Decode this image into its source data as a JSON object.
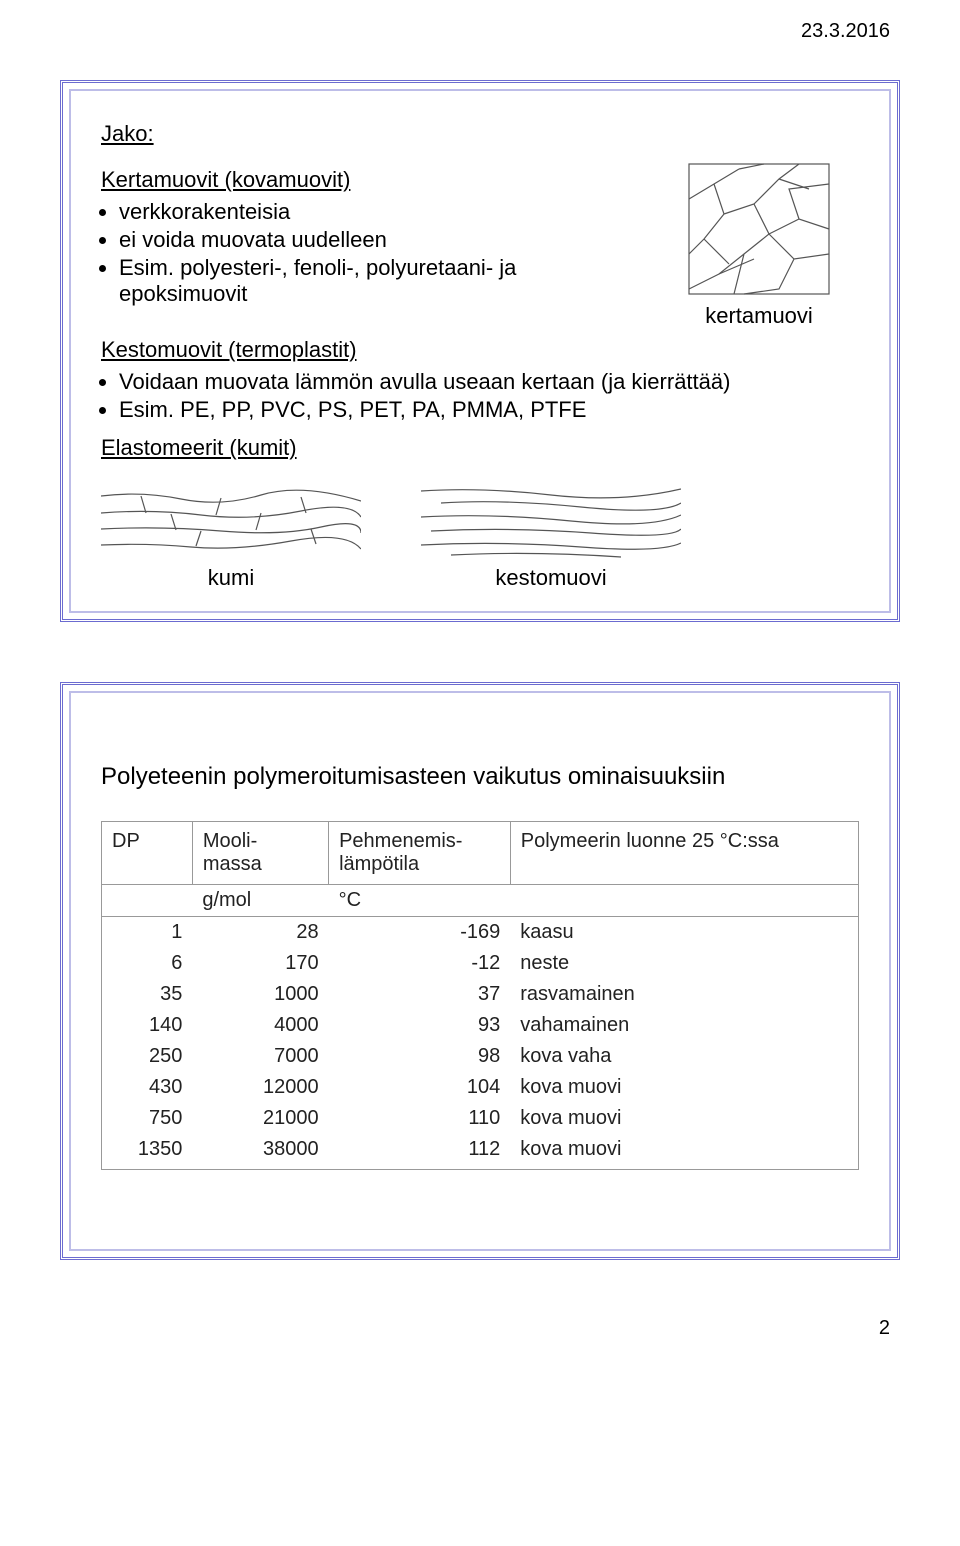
{
  "date": "23.3.2016",
  "page_number": "2",
  "slide1": {
    "heading": "Jako:",
    "section1": {
      "title": "Kertamuovit (kovamuovit)",
      "bullets": [
        "verkkorakenteisia",
        "ei voida muovata uudelleen",
        "Esim. polyesteri-, fenoli-, polyuretaani- ja epoksimuovit"
      ]
    },
    "diagram1_label": "kertamuovi",
    "section2": {
      "title": "Kestomuovit (termoplastit)",
      "bullets": [
        "Voidaan muovata lämmön avulla useaan kertaan (ja kierrättää)",
        "Esim. PE, PP, PVC, PS, PET, PA, PMMA, PTFE"
      ]
    },
    "section3": {
      "title": "Elastomeerit (kumit)"
    },
    "diagram2_label": "kumi",
    "diagram3_label": "kestomuovi"
  },
  "slide2": {
    "title": "Polyeteenin polymeroitumisasteen vaikutus ominaisuuksiin",
    "columns": [
      "DP",
      "Mooli-\nmassa",
      "Pehmenemis-\nlämpötila",
      "Polymeerin luonne 25 °C:ssa"
    ],
    "units": [
      "",
      "g/mol",
      "°C",
      ""
    ],
    "rows": [
      [
        "1",
        "28",
        "-169",
        "kaasu"
      ],
      [
        "6",
        "170",
        "-12",
        "neste"
      ],
      [
        "35",
        "1000",
        "37",
        "rasvamainen"
      ],
      [
        "140",
        "4000",
        "93",
        "vahamainen"
      ],
      [
        "250",
        "7000",
        "98",
        "kova vaha"
      ],
      [
        "430",
        "12000",
        "104",
        "kova muovi"
      ],
      [
        "750",
        "21000",
        "110",
        "kova muovi"
      ],
      [
        "1350",
        "38000",
        "112",
        "kova muovi"
      ]
    ]
  },
  "colors": {
    "border": "#6b6bd0",
    "inner_border": "#bdbde8",
    "text": "#000000",
    "line": "#555555"
  }
}
